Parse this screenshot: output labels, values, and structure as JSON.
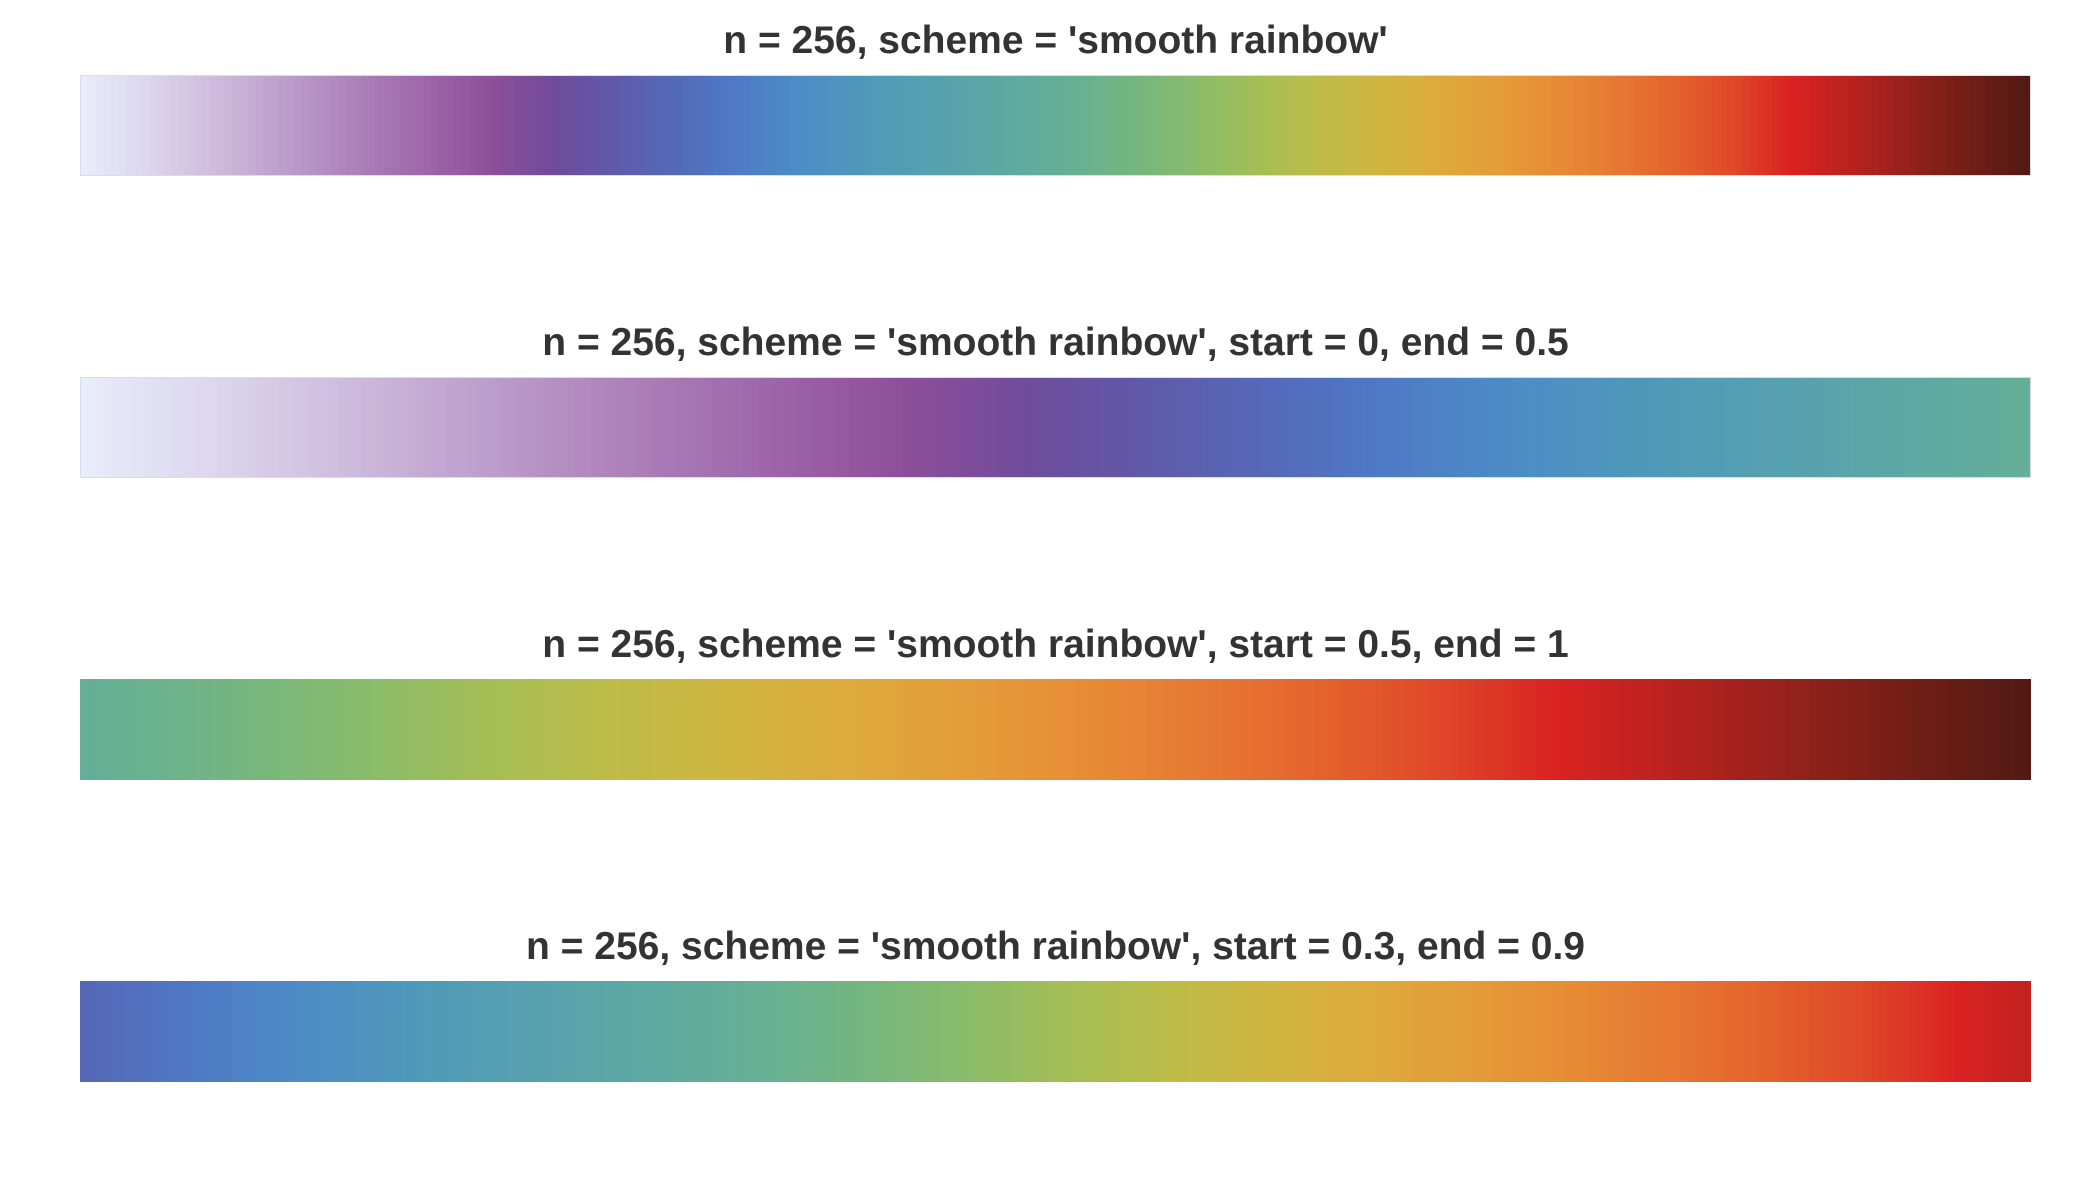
{
  "chart_data": [
    {
      "type": "heatmap",
      "title": "n = 256, scheme = 'smooth rainbow'",
      "n": 256,
      "scheme": "smooth rainbow",
      "start": 0,
      "end": 1,
      "xlabel": "",
      "ylabel": "",
      "grid": false
    },
    {
      "type": "heatmap",
      "title": "n = 256, scheme = 'smooth rainbow', start = 0, end = 0.5",
      "n": 256,
      "scheme": "smooth rainbow",
      "start": 0,
      "end": 0.5,
      "xlabel": "",
      "ylabel": "",
      "grid": false
    },
    {
      "type": "heatmap",
      "title": "n = 256, scheme = 'smooth rainbow', start = 0.5, end = 1",
      "n": 256,
      "scheme": "smooth rainbow",
      "start": 0.5,
      "end": 1,
      "xlabel": "",
      "ylabel": "",
      "grid": false
    },
    {
      "type": "heatmap",
      "title": "n = 256, scheme = 'smooth rainbow', start = 0.3, end = 0.9",
      "n": 256,
      "scheme": "smooth rainbow",
      "start": 0.3,
      "end": 0.9,
      "xlabel": "",
      "ylabel": "",
      "grid": false
    }
  ],
  "colors": {
    "background": "#ffffff",
    "title_text": "#333333",
    "smooth_rainbow_anchors": [
      "#E8ECFB",
      "#DDD8EF",
      "#D1C1E1",
      "#C3A8D1",
      "#B58FC2",
      "#A778B4",
      "#9B62A7",
      "#8C4E99",
      "#6F4C9B",
      "#6059A9",
      "#5568B8",
      "#4E79C5",
      "#4D8AC6",
      "#4E96BC",
      "#549EB3",
      "#59A5A9",
      "#60AB9E",
      "#69B190",
      "#77B77D",
      "#8CBC68",
      "#A6BE54",
      "#BEBC48",
      "#D1B541",
      "#DDAA3C",
      "#E49C39",
      "#E78C35",
      "#E67932",
      "#E4632D",
      "#DF4828",
      "#DA2222",
      "#B8221E",
      "#95211B",
      "#721E17",
      "#521A13"
    ]
  }
}
